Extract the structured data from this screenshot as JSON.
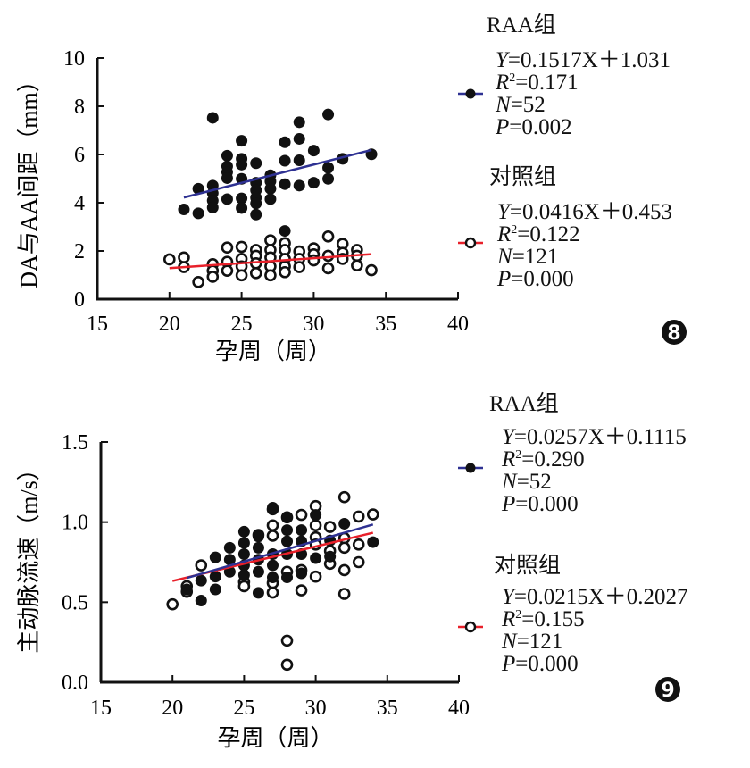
{
  "chart_data": [
    {
      "type": "scatter",
      "panel_label": "8",
      "xlabel": "孕周（周）",
      "ylabel": "DA与AA间距（mm）",
      "xlim": [
        15,
        40
      ],
      "ylim": [
        0,
        10
      ],
      "xticks": [
        "15",
        "20",
        "25",
        "30",
        "35",
        "40"
      ],
      "yticks": [
        "0",
        "2",
        "4",
        "6",
        "8",
        "10"
      ],
      "grid": false,
      "legend_position": "right",
      "series": [
        {
          "name": "RAA组",
          "marker": "filled-circle",
          "line_color": "#2e3192",
          "fit": {
            "slope": 0.1517,
            "intercept": 1.031,
            "x_range": [
              21,
              34
            ]
          },
          "stats": [
            {
              "var": "Y",
              "sup": "",
              "val": "=0.1517X＋1.031"
            },
            {
              "var": "R",
              "sup": "2",
              "val": "=0.171"
            },
            {
              "var": "N",
              "sup": "",
              "val": "=52"
            },
            {
              "var": "P",
              "sup": "",
              "val": "=0.002"
            }
          ],
          "points": [
            [
              21,
              3.72
            ],
            [
              22,
              3.56
            ],
            [
              22,
              4.58
            ],
            [
              23,
              7.52
            ],
            [
              23,
              4.71
            ],
            [
              23,
              4.4
            ],
            [
              23,
              4.09
            ],
            [
              23,
              3.8
            ],
            [
              24,
              5.95
            ],
            [
              24,
              5.51
            ],
            [
              24,
              5.27
            ],
            [
              24,
              5.02
            ],
            [
              24,
              4.15
            ],
            [
              25,
              6.57
            ],
            [
              25,
              5.82
            ],
            [
              25,
              5.58
            ],
            [
              25,
              4.99
            ],
            [
              25,
              4.18
            ],
            [
              25,
              3.78
            ],
            [
              26,
              5.64
            ],
            [
              26,
              4.83
            ],
            [
              26,
              4.52
            ],
            [
              26,
              4.21
            ],
            [
              26,
              3.97
            ],
            [
              26,
              3.51
            ],
            [
              27,
              5.14
            ],
            [
              27,
              4.89
            ],
            [
              27,
              4.58
            ],
            [
              27,
              4.15
            ],
            [
              28,
              6.51
            ],
            [
              28,
              5.74
            ],
            [
              28,
              4.77
            ],
            [
              28,
              2.83
            ],
            [
              29,
              7.34
            ],
            [
              29,
              6.65
            ],
            [
              29,
              5.76
            ],
            [
              29,
              4.71
            ],
            [
              30,
              6.16
            ],
            [
              30,
              4.83
            ],
            [
              31,
              7.66
            ],
            [
              31,
              5.45
            ],
            [
              31,
              4.99
            ],
            [
              32,
              5.82
            ],
            [
              34,
              6.01
            ]
          ]
        },
        {
          "name": "对照组",
          "marker": "open-circle",
          "line_color": "#e8202a",
          "fit": {
            "slope": 0.0416,
            "intercept": 0.453,
            "x_range": [
              20,
              34
            ]
          },
          "stats": [
            {
              "var": "Y",
              "sup": "",
              "val": "=0.0416X＋0.453"
            },
            {
              "var": "R",
              "sup": "2",
              "val": "=0.122"
            },
            {
              "var": "N",
              "sup": "",
              "val": "=121"
            },
            {
              "var": "P",
              "sup": "",
              "val": "=0.000"
            }
          ],
          "points": [
            [
              20,
              1.65
            ],
            [
              21,
              1.73
            ],
            [
              21,
              1.33
            ],
            [
              22,
              0.71
            ],
            [
              23,
              1.45
            ],
            [
              23,
              1.18
            ],
            [
              23,
              0.93
            ],
            [
              24,
              2.14
            ],
            [
              24,
              1.55
            ],
            [
              24,
              1.18
            ],
            [
              25,
              2.17
            ],
            [
              25,
              1.67
            ],
            [
              25,
              1.36
            ],
            [
              25,
              0.99
            ],
            [
              26,
              2.04
            ],
            [
              26,
              1.8
            ],
            [
              26,
              1.49
            ],
            [
              26,
              1.08
            ],
            [
              27,
              2.44
            ],
            [
              27,
              2.04
            ],
            [
              27,
              1.73
            ],
            [
              27,
              1.36
            ],
            [
              27,
              0.99
            ],
            [
              28,
              2.32
            ],
            [
              28,
              2.04
            ],
            [
              28,
              1.67
            ],
            [
              28,
              1.36
            ],
            [
              28,
              1.12
            ],
            [
              29,
              1.98
            ],
            [
              29,
              1.67
            ],
            [
              29,
              1.33
            ],
            [
              30,
              2.11
            ],
            [
              30,
              1.86
            ],
            [
              30,
              1.61
            ],
            [
              31,
              2.6
            ],
            [
              31,
              1.8
            ],
            [
              31,
              1.28
            ],
            [
              32,
              2.29
            ],
            [
              32,
              1.92
            ],
            [
              32,
              1.67
            ],
            [
              33,
              2.04
            ],
            [
              33,
              1.8
            ],
            [
              33,
              1.4
            ],
            [
              34,
              1.2
            ]
          ]
        }
      ]
    },
    {
      "type": "scatter",
      "panel_label": "9",
      "xlabel": "孕周（周）",
      "ylabel": "主动脉流速（m/s）",
      "xlim": [
        15,
        40
      ],
      "ylim": [
        0,
        1.5
      ],
      "xticks": [
        "15",
        "20",
        "25",
        "30",
        "35",
        "40"
      ],
      "yticks": [
        "0.0",
        "0.5",
        "1.0",
        "1.5"
      ],
      "grid": false,
      "legend_position": "right",
      "series": [
        {
          "name": "RAA组",
          "marker": "filled-circle",
          "line_color": "#2e3192",
          "fit": {
            "slope": 0.0257,
            "intercept": 0.1115,
            "x_range": [
              21,
              34
            ]
          },
          "stats": [
            {
              "var": "Y",
              "sup": "",
              "val": "=0.0257X＋0.1115"
            },
            {
              "var": "R",
              "sup": "2",
              "val": "=0.290"
            },
            {
              "var": "N",
              "sup": "",
              "val": "=52"
            },
            {
              "var": "P",
              "sup": "",
              "val": "=0.000"
            }
          ],
          "points": [
            [
              21,
              0.58
            ],
            [
              22,
              0.635
            ],
            [
              22,
              0.51
            ],
            [
              23,
              0.78
            ],
            [
              23,
              0.66
            ],
            [
              23,
              0.58
            ],
            [
              24,
              0.84
            ],
            [
              24,
              0.765
            ],
            [
              24,
              0.69
            ],
            [
              25,
              0.94
            ],
            [
              25,
              0.87
            ],
            [
              25,
              0.8
            ],
            [
              25,
              0.73
            ],
            [
              25,
              0.67
            ],
            [
              26,
              0.91
            ],
            [
              26,
              0.84
            ],
            [
              26,
              0.765
            ],
            [
              26,
              0.69
            ],
            [
              26,
              0.558
            ],
            [
              27,
              1.09
            ],
            [
              27,
              0.8
            ],
            [
              27,
              0.73
            ],
            [
              27,
              0.655
            ],
            [
              28,
              1.03
            ],
            [
              28,
              0.95
            ],
            [
              28,
              0.88
            ],
            [
              28,
              0.8
            ],
            [
              28,
              0.655
            ],
            [
              29,
              0.95
            ],
            [
              29,
              0.88
            ],
            [
              29,
              0.8
            ],
            [
              29,
              0.68
            ],
            [
              30,
              1.045
            ],
            [
              30,
              0.775
            ],
            [
              31,
              0.885
            ],
            [
              31,
              0.785
            ],
            [
              32,
              0.99
            ],
            [
              34,
              0.875
            ]
          ]
        },
        {
          "name": "对照组",
          "marker": "open-circle",
          "line_color": "#e8202a",
          "fit": {
            "slope": 0.0215,
            "intercept": 0.2027,
            "x_range": [
              20,
              34
            ]
          },
          "stats": [
            {
              "var": "Y",
              "sup": "",
              "val": "=0.0215X＋0.2027"
            },
            {
              "var": "R",
              "sup": "2",
              "val": "=0.155"
            },
            {
              "var": "N",
              "sup": "",
              "val": "=121"
            },
            {
              "var": "P",
              "sup": "",
              "val": "=0.000"
            }
          ],
          "points": [
            [
              20,
              0.487
            ],
            [
              21,
              0.6
            ],
            [
              21,
              0.565
            ],
            [
              22,
              0.73
            ],
            [
              25,
              0.626
            ],
            [
              25,
              0.6
            ],
            [
              26,
              0.92
            ],
            [
              27,
              1.08
            ],
            [
              27,
              0.98
            ],
            [
              27,
              0.915
            ],
            [
              27,
              0.62
            ],
            [
              27,
              0.56
            ],
            [
              28,
              1.03
            ],
            [
              28,
              0.69
            ],
            [
              28,
              0.26
            ],
            [
              28,
              0.11
            ],
            [
              29,
              1.045
            ],
            [
              29,
              0.7
            ],
            [
              29,
              0.574
            ],
            [
              30,
              1.1
            ],
            [
              30,
              0.98
            ],
            [
              30,
              0.905
            ],
            [
              30,
              0.86
            ],
            [
              30,
              0.66
            ],
            [
              31,
              0.97
            ],
            [
              31,
              0.82
            ],
            [
              31,
              0.74
            ],
            [
              32,
              1.156
            ],
            [
              32,
              0.9
            ],
            [
              32,
              0.84
            ],
            [
              32,
              0.7
            ],
            [
              32,
              0.552
            ],
            [
              33,
              1.035
            ],
            [
              33,
              0.86
            ],
            [
              33,
              0.75
            ],
            [
              34,
              1.048
            ]
          ]
        }
      ]
    }
  ]
}
